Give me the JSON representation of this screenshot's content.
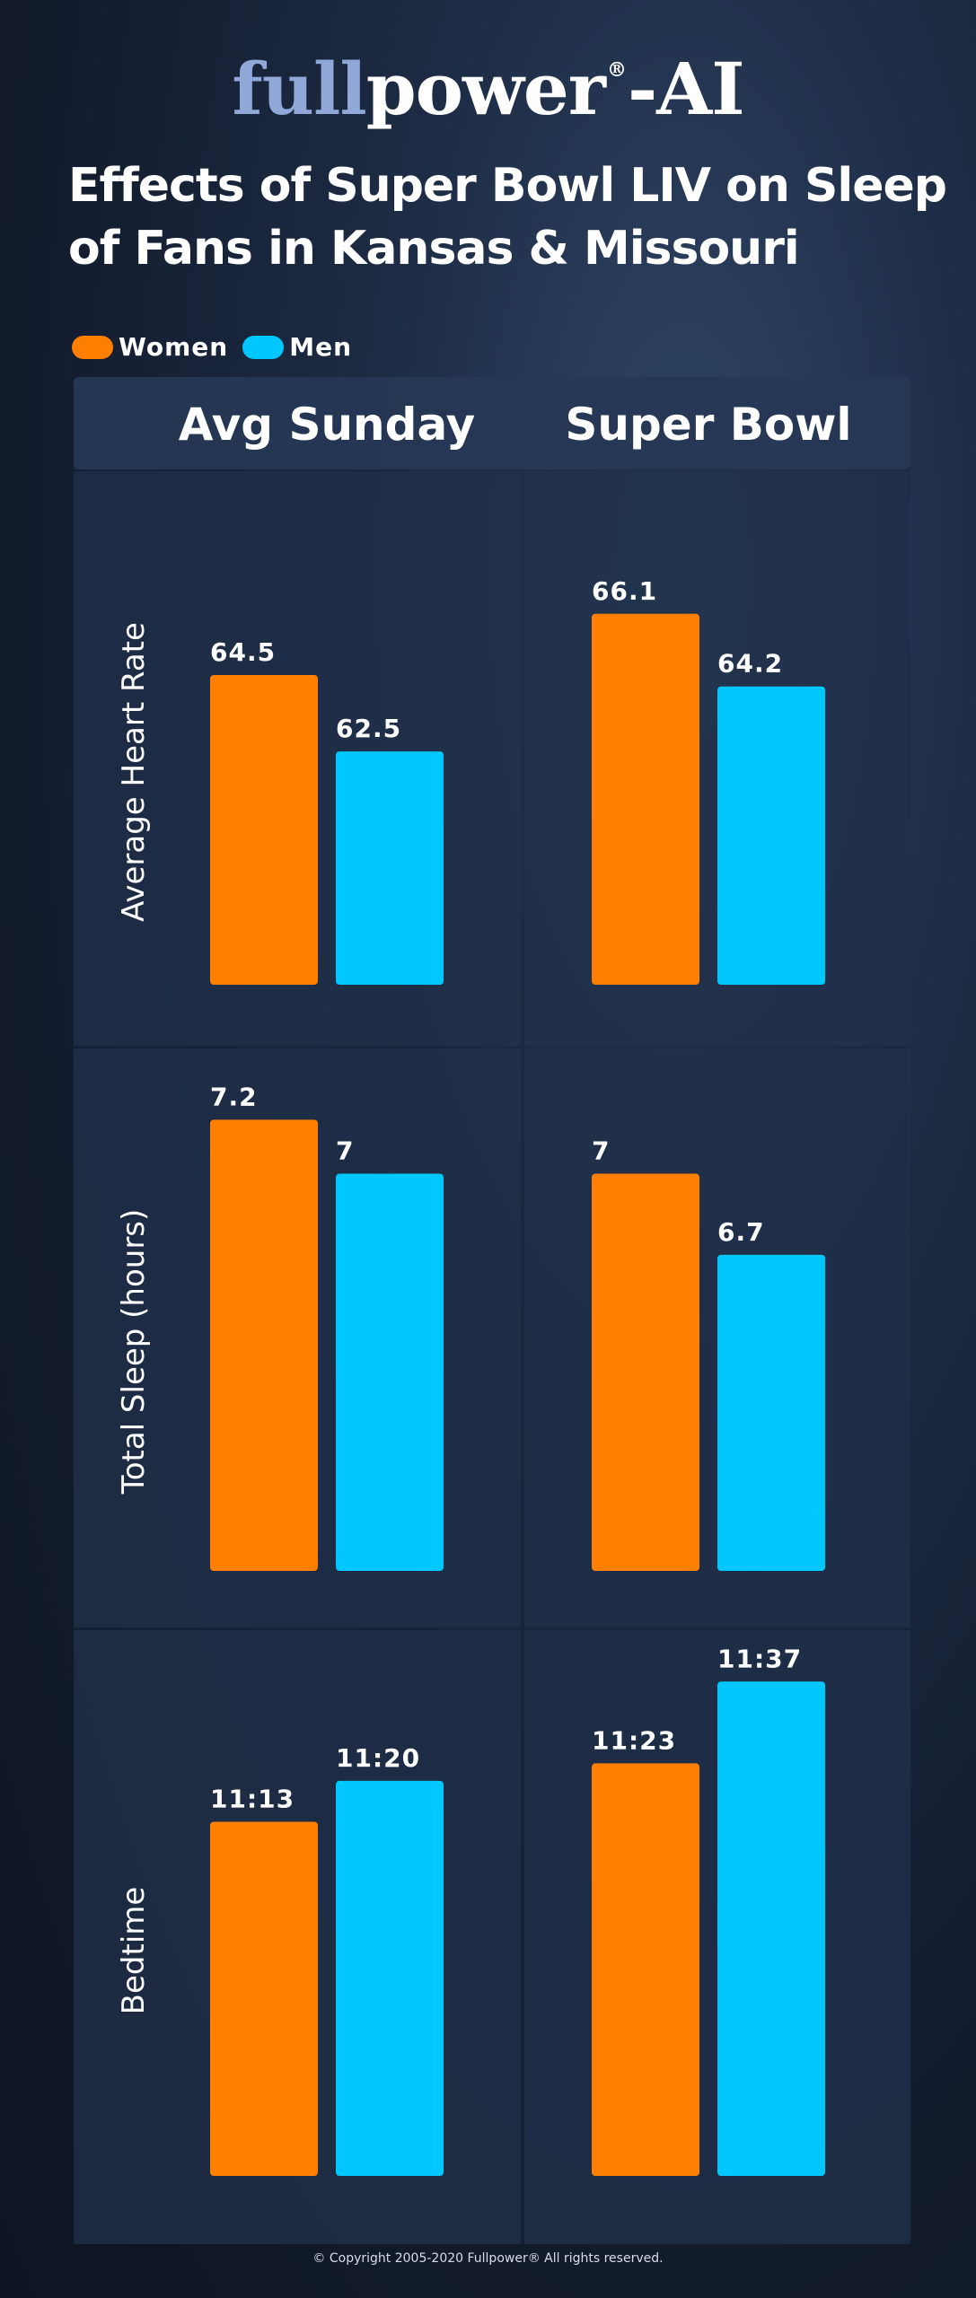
{
  "logo": {
    "part1": "full",
    "part2": "power",
    "reg": "®",
    "part3": "-AI"
  },
  "title_line1": "Effects of Super Bowl LIV on Sleep",
  "title_line2": "of Fans in Kansas & Missouri",
  "copyright": "© Copyright 2005-2020 Fullpower® All rights reserved.",
  "colors": {
    "women": "#ff7f00",
    "men": "#00c8ff"
  },
  "chart_data": {
    "type": "bar",
    "legend_position": "top-left",
    "categories": [
      "Avg Sunday",
      "Super Bowl"
    ],
    "series_names": [
      "Women",
      "Men"
    ],
    "panels": [
      {
        "ylabel": "Average Heart Rate",
        "series": [
          {
            "name": "Women",
            "values": [
              64.5,
              66.1
            ],
            "labels": [
              "64.5",
              "66.1"
            ]
          },
          {
            "name": "Men",
            "values": [
              62.5,
              64.2
            ],
            "labels": [
              "62.5",
              "64.2"
            ]
          }
        ]
      },
      {
        "ylabel": "Total Sleep (hours)",
        "series": [
          {
            "name": "Women",
            "values": [
              7.2,
              7
            ],
            "labels": [
              "7.2",
              "7"
            ]
          },
          {
            "name": "Men",
            "values": [
              7,
              6.7
            ],
            "labels": [
              "7",
              "6.7"
            ]
          }
        ]
      },
      {
        "ylabel": "Bedtime",
        "series": [
          {
            "name": "Women",
            "values": [
              "23:13",
              "23:23"
            ],
            "labels": [
              "11:13",
              "11:23"
            ]
          },
          {
            "name": "Men",
            "values": [
              "23:20",
              "23:37"
            ],
            "labels": [
              "11:20",
              "11:37"
            ]
          }
        ]
      }
    ]
  }
}
